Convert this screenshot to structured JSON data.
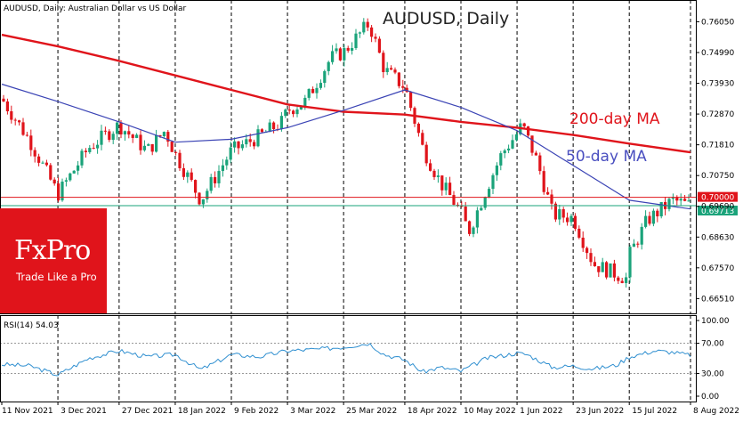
{
  "header": {
    "symbol_line": "AUDUSD, Daily:  Australian Dollar vs US Dollar",
    "big_title": "AUDUSD, Daily"
  },
  "brand": {
    "logo_text": "FxPro",
    "tagline": "Trade Like a Pro",
    "color": "#e0141b"
  },
  "chart_data": [
    {
      "type": "candlestick",
      "title": "AUDUSD, Daily",
      "y_ticks": [
        0.7605,
        0.7499,
        0.7393,
        0.7287,
        0.7181,
        0.7075,
        0.6969,
        0.6863,
        0.6757,
        0.6651
      ],
      "y_tick_labels": [
        "0.76050",
        "0.74990",
        "0.73930",
        "0.72870",
        "0.71810",
        "0.70750",
        "0.69690",
        "0.68630",
        "0.67570",
        "0.66510"
      ],
      "ylim": [
        0.66,
        0.768
      ],
      "x_tick_labels": [
        "11 Nov 2021",
        "3 Dec 2021",
        "27 Dec 2021",
        "18 Jan 2022",
        "9 Feb 2022",
        "3 Mar 2022",
        "25 Mar 2022",
        "18 Apr 2022",
        "10 May 2022",
        "1 Jun 2022",
        "23 Jun 2022",
        "15 Jul 2022",
        "8 Aug 2022"
      ],
      "grid": "vertical dashed",
      "up_color": "#1aa37a",
      "down_color": "#e0141b",
      "close_points": [
        {
          "date": "11 Nov 2021",
          "close": 0.734
        },
        {
          "date": "22 Nov 2021",
          "close": 0.7195
        },
        {
          "date": "3 Dec 2021",
          "close": 0.701
        },
        {
          "date": "15 Dec 2021",
          "close": 0.717
        },
        {
          "date": "27 Dec 2021",
          "close": 0.725
        },
        {
          "date": "7 Jan 2022",
          "close": 0.716
        },
        {
          "date": "14 Jan 2022",
          "close": 0.723
        },
        {
          "date": "18 Jan 2022",
          "close": 0.715
        },
        {
          "date": "28 Jan 2022",
          "close": 0.699
        },
        {
          "date": "9 Feb 2022",
          "close": 0.716
        },
        {
          "date": "20 Feb 2022",
          "close": 0.721
        },
        {
          "date": "1 Mar 2022",
          "close": 0.726
        },
        {
          "date": "3 Mar 2022",
          "close": 0.73
        },
        {
          "date": "10 Mar 2022",
          "close": 0.733
        },
        {
          "date": "20 Mar 2022",
          "close": 0.748
        },
        {
          "date": "25 Mar 2022",
          "close": 0.75
        },
        {
          "date": "4 Apr 2022",
          "close": 0.76
        },
        {
          "date": "10 Apr 2022",
          "close": 0.744
        },
        {
          "date": "18 Apr 2022",
          "close": 0.738
        },
        {
          "date": "25 Apr 2022",
          "close": 0.717
        },
        {
          "date": "2 May 2022",
          "close": 0.705
        },
        {
          "date": "10 May 2022",
          "close": 0.695
        },
        {
          "date": "13 May 2022",
          "close": 0.688
        },
        {
          "date": "20 May 2022",
          "close": 0.703
        },
        {
          "date": "26 May 2022",
          "close": 0.715
        },
        {
          "date": "1 Jun 2022",
          "close": 0.722
        },
        {
          "date": "3 Jun 2022",
          "close": 0.725
        },
        {
          "date": "9 Jun 2022",
          "close": 0.712
        },
        {
          "date": "15 Jun 2022",
          "close": 0.694
        },
        {
          "date": "23 Jun 2022",
          "close": 0.693
        },
        {
          "date": "1 Jul 2022",
          "close": 0.677
        },
        {
          "date": "14 Jul 2022",
          "close": 0.672
        },
        {
          "date": "15 Jul 2022",
          "close": 0.68
        },
        {
          "date": "22 Jul 2022",
          "close": 0.692
        },
        {
          "date": "1 Aug 2022",
          "close": 0.699
        },
        {
          "date": "8 Aug 2022",
          "close": 0.6971
        }
      ],
      "series": [
        {
          "name": "200-day MA",
          "color": "#e0141b",
          "points": [
            {
              "date": "11 Nov 2021",
              "value": 0.756
            },
            {
              "date": "3 Dec 2021",
              "value": 0.752
            },
            {
              "date": "27 Dec 2021",
              "value": 0.747
            },
            {
              "date": "18 Jan 2022",
              "value": 0.742
            },
            {
              "date": "9 Feb 2022",
              "value": 0.737
            },
            {
              "date": "3 Mar 2022",
              "value": 0.732
            },
            {
              "date": "25 Mar 2022",
              "value": 0.7295
            },
            {
              "date": "18 Apr 2022",
              "value": 0.7285
            },
            {
              "date": "10 May 2022",
              "value": 0.726
            },
            {
              "date": "1 Jun 2022",
              "value": 0.724
            },
            {
              "date": "23 Jun 2022",
              "value": 0.7215
            },
            {
              "date": "15 Jul 2022",
              "value": 0.7185
            },
            {
              "date": "8 Aug 2022",
              "value": 0.7155
            }
          ]
        },
        {
          "name": "50-day MA",
          "color": "#3b44b5",
          "points": [
            {
              "date": "11 Nov 2021",
              "value": 0.739
            },
            {
              "date": "3 Dec 2021",
              "value": 0.733
            },
            {
              "date": "27 Dec 2021",
              "value": 0.726
            },
            {
              "date": "18 Jan 2022",
              "value": 0.719
            },
            {
              "date": "9 Feb 2022",
              "value": 0.72
            },
            {
              "date": "3 Mar 2022",
              "value": 0.724
            },
            {
              "date": "25 Mar 2022",
              "value": 0.73
            },
            {
              "date": "18 Apr 2022",
              "value": 0.737
            },
            {
              "date": "10 May 2022",
              "value": 0.731
            },
            {
              "date": "1 Jun 2022",
              "value": 0.723
            },
            {
              "date": "23 Jun 2022",
              "value": 0.711
            },
            {
              "date": "15 Jul 2022",
              "value": 0.699
            },
            {
              "date": "8 Aug 2022",
              "value": 0.696
            }
          ]
        }
      ],
      "horizontal_lines": [
        {
          "value": 0.7,
          "label": "0.70000",
          "color": "#e0141b"
        },
        {
          "value": 0.69713,
          "label": "0.69713",
          "color": "#1aa37a"
        }
      ],
      "annotations": [
        {
          "text": "200-day MA",
          "color": "#e0141b"
        },
        {
          "text": "50-day MA",
          "color": "#4a4fc0"
        }
      ]
    },
    {
      "type": "line",
      "title": "RSI(14) 54.03",
      "y_ticks": [
        100,
        70,
        30,
        0
      ],
      "y_tick_labels": [
        "100.00",
        "70.00",
        "30.00",
        "0.00"
      ],
      "ylim": [
        0,
        100
      ],
      "color": "#2f8fd0",
      "points": [
        {
          "date": "11 Nov 2021",
          "value": 42
        },
        {
          "date": "22 Nov 2021",
          "value": 40
        },
        {
          "date": "3 Dec 2021",
          "value": 28
        },
        {
          "date": "15 Dec 2021",
          "value": 50
        },
        {
          "date": "27 Dec 2021",
          "value": 60
        },
        {
          "date": "7 Jan 2022",
          "value": 52
        },
        {
          "date": "18 Jan 2022",
          "value": 55
        },
        {
          "date": "28 Jan 2022",
          "value": 35
        },
        {
          "date": "9 Feb 2022",
          "value": 55
        },
        {
          "date": "20 Feb 2022",
          "value": 52
        },
        {
          "date": "3 Mar 2022",
          "value": 60
        },
        {
          "date": "15 Mar 2022",
          "value": 62
        },
        {
          "date": "25 Mar 2022",
          "value": 65
        },
        {
          "date": "4 Apr 2022",
          "value": 70
        },
        {
          "date": "10 Apr 2022",
          "value": 55
        },
        {
          "date": "18 Apr 2022",
          "value": 48
        },
        {
          "date": "25 Apr 2022",
          "value": 32
        },
        {
          "date": "2 May 2022",
          "value": 38
        },
        {
          "date": "10 May 2022",
          "value": 33
        },
        {
          "date": "20 May 2022",
          "value": 50
        },
        {
          "date": "1 Jun 2022",
          "value": 57
        },
        {
          "date": "5 Jun 2022",
          "value": 55
        },
        {
          "date": "15 Jun 2022",
          "value": 38
        },
        {
          "date": "23 Jun 2022",
          "value": 40
        },
        {
          "date": "1 Jul 2022",
          "value": 36
        },
        {
          "date": "10 Jul 2022",
          "value": 41
        },
        {
          "date": "15 Jul 2022",
          "value": 52
        },
        {
          "date": "25 Jul 2022",
          "value": 60
        },
        {
          "date": "1 Aug 2022",
          "value": 58
        },
        {
          "date": "8 Aug 2022",
          "value": 54
        }
      ]
    }
  ]
}
